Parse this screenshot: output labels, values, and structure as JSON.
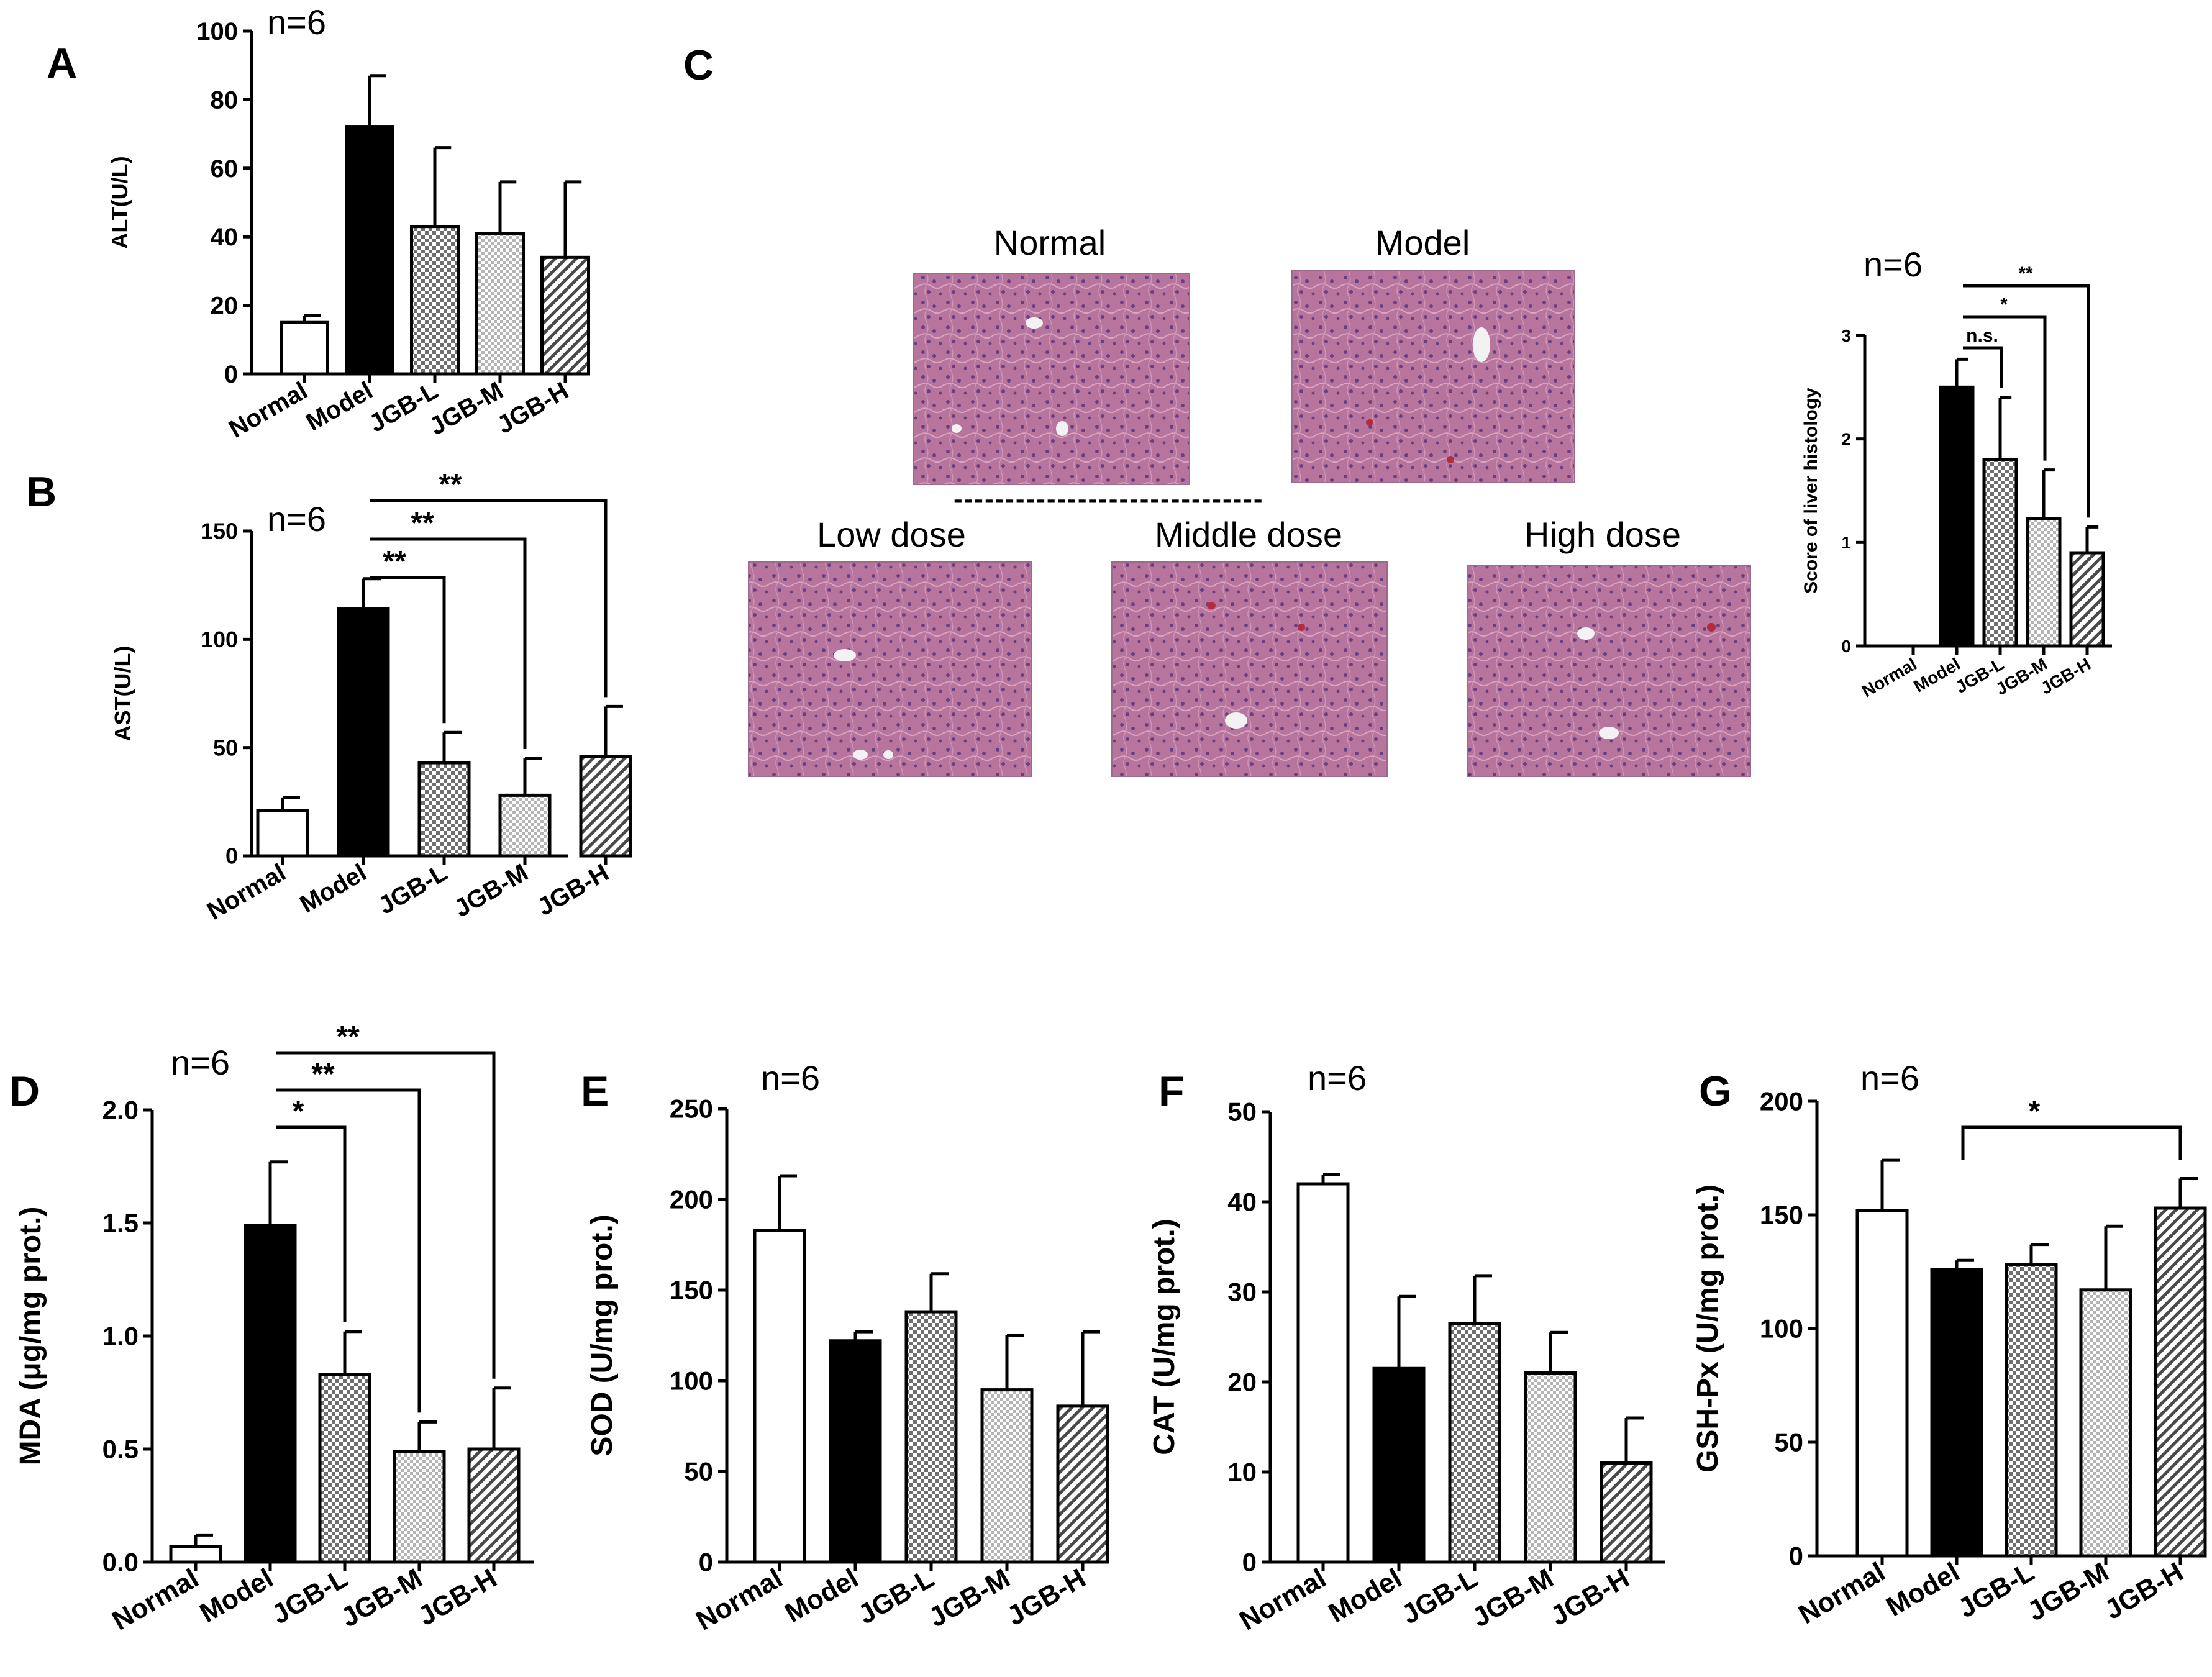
{
  "figure_labels": {
    "A": "A",
    "B": "B",
    "C": "C",
    "D": "D",
    "E": "E",
    "F": "F",
    "G": "G"
  },
  "n_label": "n=6",
  "histology": {
    "separator": "------------------------------",
    "panels": [
      {
        "label": "Normal"
      },
      {
        "label": "Model"
      },
      {
        "label": "Low dose"
      },
      {
        "label": "Middle dose"
      },
      {
        "label": "High dose"
      }
    ]
  },
  "colors": {
    "bar_model": "#000000",
    "bar_normal": "#ffffff",
    "pattern_low": "#7a7a7a",
    "pattern_mid": "#a8a8a8",
    "pattern_high": "#555555",
    "tissue_base": "#b7759d",
    "tissue_dark": "#7b4a86"
  },
  "chart_data": [
    {
      "id": "A",
      "type": "bar",
      "title": "",
      "n": "n=6",
      "ylabel": "ALT(U/L)",
      "categories": [
        "Normal",
        "Model",
        "JGB-L",
        "JGB-M",
        "JGB-H"
      ],
      "values": [
        15,
        72,
        43,
        41,
        34
      ],
      "errors": [
        2,
        15,
        23,
        15,
        22
      ],
      "ylim": [
        0,
        100
      ],
      "yticks": [
        "0",
        "20",
        "40",
        "60",
        "80",
        "100"
      ],
      "significance": []
    },
    {
      "id": "B",
      "type": "bar",
      "title": "",
      "n": "n=6",
      "ylabel": "AST(U/L)",
      "categories": [
        "Normal",
        "Model",
        "JGB-L",
        "JGB-M",
        "JGB-H"
      ],
      "values": [
        21,
        114,
        43,
        28,
        46
      ],
      "errors": [
        6,
        14,
        14,
        17,
        23
      ],
      "ylim": [
        0,
        150
      ],
      "yticks": [
        "0",
        "50",
        "100",
        "150"
      ],
      "significance": [
        {
          "from": 1,
          "to": 2,
          "label": "**"
        },
        {
          "from": 1,
          "to": 3,
          "label": "**"
        },
        {
          "from": 1,
          "to": 4,
          "label": "**"
        }
      ]
    },
    {
      "id": "C",
      "type": "bar",
      "title": "",
      "n": "n=6",
      "ylabel": "Score of liver histology",
      "categories": [
        "Normal",
        "Model",
        "JGB-L",
        "JGB-M",
        "JGB-H"
      ],
      "values": [
        0,
        2.5,
        1.8,
        1.23,
        0.9
      ],
      "errors": [
        0,
        0.27,
        0.6,
        0.47,
        0.25
      ],
      "ylim": [
        0,
        3
      ],
      "yticks": [
        "0",
        "1",
        "2",
        "3"
      ],
      "significance": [
        {
          "from": 1,
          "to": 2,
          "label": "n.s."
        },
        {
          "from": 1,
          "to": 3,
          "label": "*"
        },
        {
          "from": 1,
          "to": 4,
          "label": "**"
        }
      ]
    },
    {
      "id": "D",
      "type": "bar",
      "title": "",
      "n": "n=6",
      "ylabel": "MDA (μg/mg prot.)",
      "categories": [
        "Normal",
        "Model",
        "JGB-L",
        "JGB-M",
        "JGB-H"
      ],
      "values": [
        0.07,
        1.49,
        0.83,
        0.49,
        0.5
      ],
      "errors": [
        0.05,
        0.28,
        0.19,
        0.13,
        0.27
      ],
      "ylim": [
        0,
        2.0
      ],
      "yticks": [
        "0.0",
        "0.5",
        "1.0",
        "1.5",
        "2.0"
      ],
      "significance": [
        {
          "from": 1,
          "to": 2,
          "label": "*"
        },
        {
          "from": 1,
          "to": 3,
          "label": "**"
        },
        {
          "from": 1,
          "to": 4,
          "label": "**"
        }
      ]
    },
    {
      "id": "E",
      "type": "bar",
      "title": "",
      "n": "n=6",
      "ylabel": "SOD (U/mg prot.)",
      "categories": [
        "Normal",
        "Model",
        "JGB-L",
        "JGB-M",
        "JGB-H"
      ],
      "values": [
        183,
        122,
        138,
        95,
        86
      ],
      "errors": [
        30,
        5,
        21,
        30,
        41
      ],
      "ylim": [
        0,
        250
      ],
      "yticks": [
        "0",
        "50",
        "100",
        "150",
        "200",
        "250"
      ],
      "significance": []
    },
    {
      "id": "F",
      "type": "bar",
      "title": "",
      "n": "n=6",
      "ylabel": "CAT (U/mg prot.)",
      "categories": [
        "Normal",
        "Model",
        "JGB-L",
        "JGB-M",
        "JGB-H"
      ],
      "values": [
        42,
        21.5,
        26.5,
        21,
        11
      ],
      "errors": [
        1,
        8,
        5.3,
        4.5,
        5
      ],
      "ylim": [
        0,
        50
      ],
      "yticks": [
        "0",
        "10",
        "20",
        "30",
        "40",
        "50"
      ],
      "significance": []
    },
    {
      "id": "G",
      "type": "bar",
      "title": "",
      "n": "n=6",
      "ylabel": "GSH-Px (U/mg prot.)",
      "categories": [
        "Normal",
        "Model",
        "JGB-L",
        "JGB-M",
        "JGB-H"
      ],
      "values": [
        152,
        126,
        128,
        117,
        153
      ],
      "errors": [
        22,
        4,
        9,
        28,
        13
      ],
      "ylim": [
        0,
        200
      ],
      "yticks": [
        "0",
        "50",
        "100",
        "150",
        "200"
      ],
      "significance": [
        {
          "from": 1,
          "to": 4,
          "label": "*"
        }
      ]
    }
  ]
}
